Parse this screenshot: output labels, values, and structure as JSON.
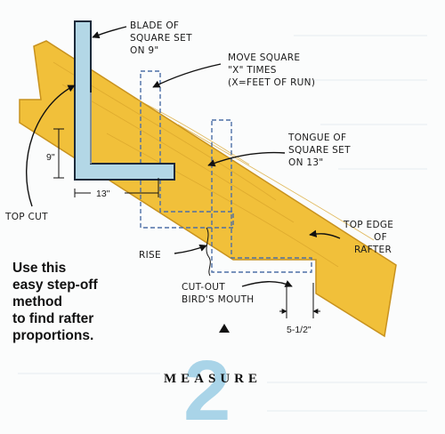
{
  "labels": {
    "blade": [
      "BLADE OF",
      "SQUARE SET",
      "ON 9\""
    ],
    "move": [
      "MOVE SQUARE",
      "\"X\" TIMES",
      "(X=FEET OF RUN)"
    ],
    "tongue": [
      "TONGUE OF",
      "SQUARE SET",
      "ON 13\""
    ],
    "top_cut": "TOP CUT",
    "top_edge": [
      "TOP EDGE",
      "OF",
      "RAFTER"
    ],
    "rise": "RISE",
    "birds_mouth": [
      "CUT-OUT",
      "BIRD'S MOUTH"
    ]
  },
  "dimensions": {
    "vertical": "9\"",
    "horizontal": "13\"",
    "seat": "5-1/2\""
  },
  "caption": [
    "Use this",
    "easy step-off",
    "method",
    "to find rafter",
    "proportions."
  ],
  "title": {
    "word": "MEASURE",
    "number": "2"
  },
  "colors": {
    "wood": "#f1c03a",
    "wood_edge": "#c8921e",
    "square": "#b3d7e6",
    "square_edge": "#1c2a3a",
    "dashed": "#4d6fa6"
  }
}
